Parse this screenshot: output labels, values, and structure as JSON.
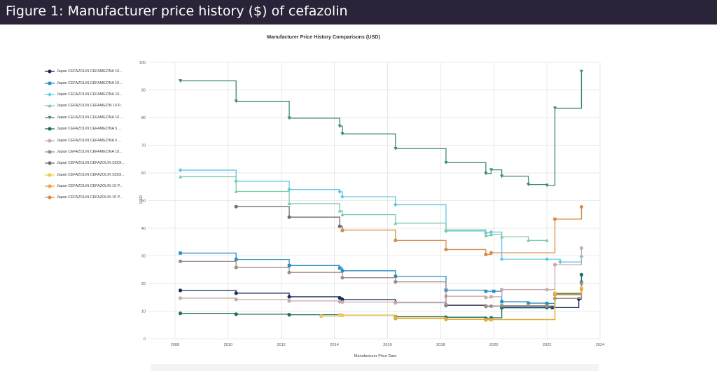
{
  "figure_title": "Figure 1: Manufacturer price history ($) of cefazolin",
  "colors": {
    "banner": "#2b2338",
    "grid": "#e3e3e3",
    "axis_text": "#555555"
  },
  "chart_data": {
    "type": "line",
    "step": true,
    "title": "Manufacturer Price History Comparisons (USD)",
    "xlabel": "Manufacturer Price Date",
    "ylabel": "USD",
    "xlim": [
      2007,
      2024
    ],
    "ylim": [
      0,
      100
    ],
    "x_ticks": [
      2008,
      2010,
      2012,
      2014,
      2016,
      2018,
      2020,
      2022,
      2024
    ],
    "y_ticks": [
      0,
      10,
      20,
      30,
      40,
      50,
      60,
      70,
      80,
      90,
      100
    ],
    "grid": true,
    "legend_position": "left",
    "series": [
      {
        "name": "Japan CEFAZOLIN CEFAMEZINA 10...",
        "color": "#1a2a5c",
        "marker": "circle",
        "points": [
          [
            2008.2,
            17.5
          ],
          [
            2010.3,
            16.5
          ],
          [
            2012.3,
            15.2
          ],
          [
            2014.2,
            14.8
          ],
          [
            2014.3,
            14.2
          ],
          [
            2016.3,
            13.1
          ],
          [
            2018.2,
            12.1
          ],
          [
            2019.7,
            11.8
          ],
          [
            2020.3,
            11.5
          ],
          [
            2022.2,
            11.3
          ],
          [
            2023.2,
            14.4
          ],
          [
            2023.3,
            20.3
          ]
        ]
      },
      {
        "name": "Japan CEFAZOLIN CEFAMEZINA 10...",
        "color": "#2a8dc1",
        "marker": "square",
        "points": [
          [
            2008.2,
            31.0
          ],
          [
            2010.3,
            28.7
          ],
          [
            2012.3,
            26.5
          ],
          [
            2014.2,
            25.6
          ],
          [
            2014.3,
            24.6
          ],
          [
            2016.3,
            22.6
          ],
          [
            2018.2,
            17.6
          ],
          [
            2019.7,
            17.2
          ],
          [
            2020.0,
            17.2
          ],
          [
            2020.3,
            13.4
          ],
          [
            2021.3,
            12.9
          ],
          [
            2022.0,
            12.8
          ],
          [
            2022.3,
            16.2
          ],
          [
            2023.3,
            20.5
          ]
        ]
      },
      {
        "name": "Japan CEFAZOLIN CEFAMEZINA 10...",
        "color": "#62c6e2",
        "marker": "diamond",
        "points": [
          [
            2008.2,
            61.0
          ],
          [
            2010.3,
            57.0
          ],
          [
            2012.3,
            54.0
          ],
          [
            2014.2,
            53.2
          ],
          [
            2014.3,
            51.4
          ],
          [
            2016.3,
            48.5
          ],
          [
            2018.2,
            39.0
          ],
          [
            2019.7,
            38.3
          ],
          [
            2019.9,
            38.6
          ],
          [
            2020.3,
            28.8
          ],
          [
            2022.0,
            28.8
          ],
          [
            2022.5,
            27.8
          ],
          [
            2023.3,
            29.8
          ]
        ]
      },
      {
        "name": "Japan CEFAZOLIN CEFAMEZIN 10 P...",
        "color": "#7ccba4",
        "marker": "triangle",
        "points": [
          [
            2008.2,
            58.6
          ],
          [
            2010.3,
            53.3
          ],
          [
            2012.3,
            48.9
          ],
          [
            2014.2,
            46.3
          ],
          [
            2014.3,
            44.9
          ],
          [
            2016.3,
            41.8
          ],
          [
            2018.2,
            39.4
          ],
          [
            2019.7,
            37.3
          ],
          [
            2019.9,
            37.8
          ],
          [
            2020.3,
            36.9
          ],
          [
            2021.3,
            35.6
          ],
          [
            2022.0,
            35.6
          ]
        ]
      },
      {
        "name": "Japan CEFAZOLIN CEFAMEZINA 10 ...",
        "color": "#3d8a6e",
        "marker": "triangle-down",
        "points": [
          [
            2008.2,
            93.3
          ],
          [
            2010.3,
            85.9
          ],
          [
            2012.3,
            79.8
          ],
          [
            2014.2,
            76.9
          ],
          [
            2014.3,
            74.1
          ],
          [
            2016.3,
            68.8
          ],
          [
            2018.2,
            63.7
          ],
          [
            2019.7,
            59.8
          ],
          [
            2019.9,
            61.1
          ],
          [
            2020.3,
            58.8
          ],
          [
            2021.3,
            55.8
          ],
          [
            2022.0,
            55.5
          ],
          [
            2022.3,
            83.4
          ],
          [
            2023.3,
            96.7
          ]
        ]
      },
      {
        "name": "Japan CEFAZOLIN CEFAMEZINA 5 ...",
        "color": "#1e6e5e",
        "marker": "circle",
        "points": [
          [
            2008.2,
            9.2
          ],
          [
            2010.3,
            8.9
          ],
          [
            2012.3,
            8.7
          ],
          [
            2014.2,
            8.6
          ],
          [
            2014.3,
            8.5
          ],
          [
            2016.3,
            8.0
          ],
          [
            2018.2,
            7.8
          ],
          [
            2019.7,
            7.4
          ],
          [
            2019.9,
            7.6
          ],
          [
            2020.3,
            11.2
          ],
          [
            2022.0,
            11.3
          ],
          [
            2022.3,
            16.5
          ],
          [
            2023.3,
            23.2
          ]
        ]
      },
      {
        "name": "Japan CEFAZOLIN CEFAMEZINA 5 ...",
        "color": "#c8aaaa",
        "marker": "circle",
        "points": [
          [
            2008.2,
            14.7
          ],
          [
            2010.3,
            14.2
          ],
          [
            2012.3,
            13.7
          ],
          [
            2014.2,
            13.4
          ],
          [
            2014.3,
            13.3
          ],
          [
            2016.3,
            13.0
          ],
          [
            2018.2,
            15.4
          ],
          [
            2019.7,
            15.0
          ],
          [
            2019.9,
            15.2
          ],
          [
            2020.3,
            17.8
          ],
          [
            2022.0,
            17.8
          ],
          [
            2022.3,
            26.8
          ],
          [
            2023.3,
            32.8
          ]
        ]
      },
      {
        "name": "Japan CEFAZOLIN CEFAMEZINA 10...",
        "color": "#a08a8a",
        "marker": "circle",
        "points": [
          [
            2008.2,
            28.0
          ],
          [
            2010.3,
            25.8
          ],
          [
            2012.3,
            24.0
          ],
          [
            2014.3,
            22.1
          ],
          [
            2016.3,
            20.6
          ],
          [
            2018.2,
            12.3
          ],
          [
            2019.7,
            11.7
          ],
          [
            2019.9,
            11.8
          ],
          [
            2020.3,
            12.0
          ],
          [
            2022.0,
            11.9
          ],
          [
            2022.3,
            14.6
          ],
          [
            2023.3,
            20.1
          ]
        ]
      },
      {
        "name": "Japan CEFAZOLIN CEFAZOLIN SODI...",
        "color": "#6f6f6f",
        "marker": "circle",
        "points": [
          [
            2010.3,
            47.8
          ],
          [
            2012.3,
            44.0
          ],
          [
            2014.2,
            40.7
          ],
          [
            2014.3,
            39.2
          ]
        ]
      },
      {
        "name": "Japan CEFAZOLIN CEFAZOLIN SODI...",
        "color": "#f0c850",
        "marker": "circle",
        "points": [
          [
            2013.5,
            8.2
          ],
          [
            2014.2,
            8.6
          ],
          [
            2014.3,
            8.5
          ],
          [
            2016.3,
            7.6
          ],
          [
            2018.2,
            7.1
          ],
          [
            2019.7,
            6.8
          ],
          [
            2019.9,
            6.9
          ],
          [
            2022.3,
            16.6
          ],
          [
            2023.3,
            18.4
          ]
        ]
      },
      {
        "name": "Japan CEFAZOLIN CEFAZOLIN 10 P...",
        "color": "#e6a83a",
        "marker": "circle",
        "points": [
          [
            2016.3,
            7.3
          ],
          [
            2018.2,
            7.0
          ],
          [
            2019.7,
            6.9
          ],
          [
            2019.9,
            7.0
          ],
          [
            2022.3,
            15.9
          ],
          [
            2023.3,
            17.9
          ]
        ]
      },
      {
        "name": "Japan CEFAZOLIN CEFAZOLIN 10 P...",
        "color": "#d98c4a",
        "marker": "circle",
        "points": [
          [
            2014.3,
            39.3
          ],
          [
            2016.3,
            35.6
          ],
          [
            2018.2,
            32.3
          ],
          [
            2019.7,
            30.5
          ],
          [
            2019.9,
            31.1
          ],
          [
            2022.3,
            43.3
          ],
          [
            2023.3,
            47.7
          ]
        ]
      }
    ]
  }
}
